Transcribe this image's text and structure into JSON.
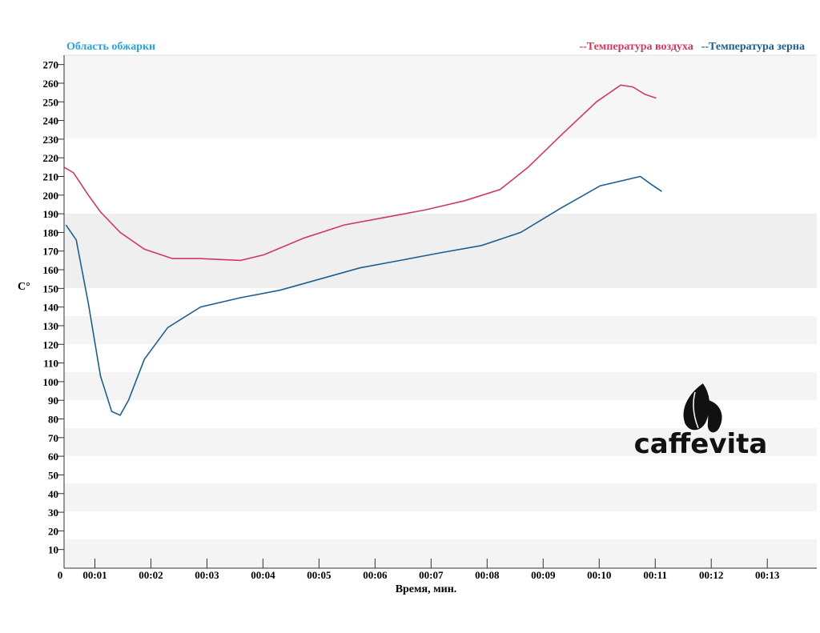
{
  "chart_data": {
    "type": "line",
    "title": "Область обжарки",
    "y_label": "C°",
    "x_label": "Время, мин.",
    "logo": "caffevita",
    "ylim": [
      0,
      275
    ],
    "yticks": [
      10,
      20,
      30,
      40,
      50,
      60,
      70,
      80,
      90,
      100,
      110,
      120,
      130,
      140,
      150,
      160,
      170,
      180,
      190,
      200,
      210,
      220,
      230,
      240,
      250,
      260,
      270
    ],
    "xlim": [
      27,
      833
    ],
    "xticks": [
      {
        "value": 27,
        "label": "0"
      },
      {
        "value": 60,
        "label": "00:01"
      },
      {
        "value": 120,
        "label": "00:02"
      },
      {
        "value": 180,
        "label": "00:03"
      },
      {
        "value": 240,
        "label": "00:04"
      },
      {
        "value": 300,
        "label": "00:05"
      },
      {
        "value": 360,
        "label": "00:06"
      },
      {
        "value": 420,
        "label": "00:07"
      },
      {
        "value": 480,
        "label": "00:08"
      },
      {
        "value": 540,
        "label": "00:09"
      },
      {
        "value": 600,
        "label": "00:10"
      },
      {
        "value": 660,
        "label": "00:11"
      },
      {
        "value": 720,
        "label": "00:12"
      },
      {
        "value": 780,
        "label": "00:13"
      }
    ],
    "series": [
      {
        "name": "--Температура воздуха",
        "color": "#cc3b5c",
        "x": [
          27,
          37,
          53,
          66,
          87,
          113,
          143,
          173,
          216,
          241,
          284,
          327,
          370,
          413,
          456,
          494,
          524,
          559,
          597,
          623,
          636,
          649,
          661
        ],
        "values": [
          215,
          212,
          200,
          191,
          180,
          171,
          166,
          166,
          165,
          168,
          177,
          184,
          188,
          192,
          197,
          203,
          215,
          232,
          250,
          259,
          258,
          254,
          252
        ]
      },
      {
        "name": "--Температура зерна",
        "color": "#1d5f8f",
        "x": [
          29,
          40,
          53,
          66,
          78,
          87,
          96,
          113,
          138,
          173,
          216,
          258,
          301,
          344,
          387,
          429,
          474,
          516,
          559,
          601,
          644,
          655,
          667
        ],
        "values": [
          184,
          176,
          142,
          103,
          84,
          82,
          90,
          112,
          129,
          140,
          145,
          149,
          155,
          161,
          165,
          169,
          173,
          180,
          193,
          205,
          210,
          206,
          202
        ]
      }
    ]
  }
}
